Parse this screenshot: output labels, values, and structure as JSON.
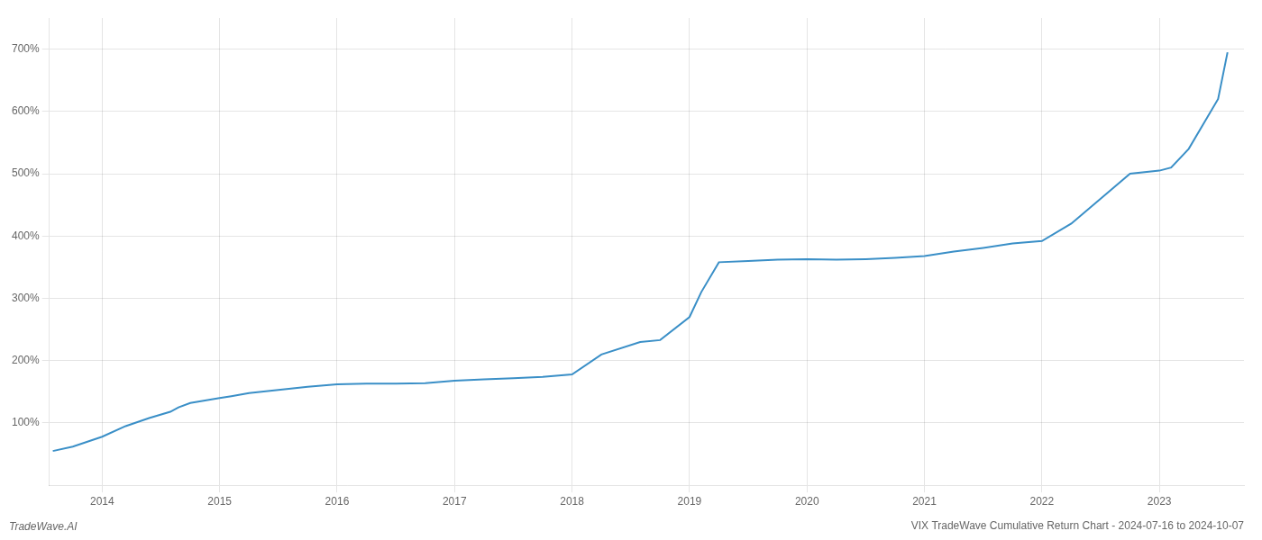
{
  "chart_data": {
    "type": "line",
    "title": "VIX TradeWave Cumulative Return Chart - 2024-07-16 to 2024-10-07",
    "annotations": [
      "TradeWave.AI"
    ],
    "color": "#3a8fc7",
    "x": [
      2013.58,
      2013.75,
      2014.0,
      2014.2,
      2014.4,
      2014.58,
      2014.65,
      2014.75,
      2015.0,
      2015.1,
      2015.25,
      2015.5,
      2015.75,
      2016.0,
      2016.25,
      2016.5,
      2016.75,
      2017.0,
      2017.25,
      2017.5,
      2017.75,
      2018.0,
      2018.25,
      2018.58,
      2018.75,
      2019.0,
      2019.1,
      2019.25,
      2019.5,
      2019.75,
      2020.0,
      2020.25,
      2020.5,
      2020.75,
      2021.0,
      2021.25,
      2021.5,
      2021.75,
      2022.0,
      2022.25,
      2022.5,
      2022.75,
      2023.0,
      2023.1,
      2023.25,
      2023.5,
      2023.58
    ],
    "values": [
      55,
      62,
      78,
      95,
      108,
      118,
      125,
      132,
      140,
      143,
      148,
      153,
      158,
      162,
      163,
      163,
      164,
      168,
      170,
      172,
      174,
      178,
      210,
      230,
      233,
      270,
      310,
      358,
      360,
      362,
      363,
      362,
      363,
      365,
      368,
      375,
      381,
      388,
      392,
      420,
      460,
      500,
      505,
      510,
      540,
      620,
      695
    ],
    "xlim": [
      2013.55,
      2023.72
    ],
    "xticks": [
      2014,
      2015,
      2016,
      2017,
      2018,
      2019,
      2020,
      2021,
      2022,
      2023
    ],
    "ylim": [
      0,
      750
    ],
    "yticks": [
      {
        "value": 100,
        "label": "100%"
      },
      {
        "value": 200,
        "label": "200%"
      },
      {
        "value": 300,
        "label": "300%"
      },
      {
        "value": 400,
        "label": "400%"
      },
      {
        "value": 500,
        "label": "500%"
      },
      {
        "value": 600,
        "label": "600%"
      },
      {
        "value": 700,
        "label": "700%"
      }
    ],
    "grid": true
  }
}
